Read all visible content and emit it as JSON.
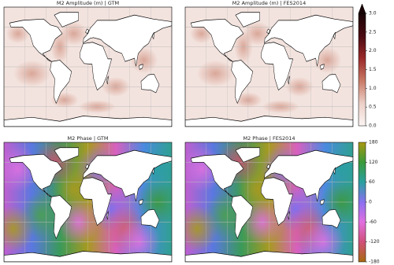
{
  "panels": [
    {
      "title": "M2 Amplitude (m) | GTM"
    },
    {
      "title": "M2 Amplitude (m) | FES2014"
    },
    {
      "title": "M2 Phase | GTM"
    },
    {
      "title": "M2 Phase | FES2014"
    }
  ],
  "colorbars": [
    {
      "lim": [
        0,
        3
      ],
      "extend": "max",
      "ticks": [
        {
          "value": 0,
          "label": "0.0"
        },
        0.5,
        {
          "value": 1,
          "label": "1.0"
        },
        1.5,
        {
          "value": 2,
          "label": "2.0"
        },
        2.5,
        {
          "value": 3,
          "label": "3.0"
        }
      ],
      "colors": [
        "#fbf5f3",
        "#ecd0c8",
        "#c97a66",
        "#9a2a2a",
        "#4a0a12",
        "#1a0306"
      ]
    },
    {
      "lim": [
        -180,
        180
      ],
      "ticks": [
        -180,
        -120,
        -60,
        0,
        60,
        120,
        180
      ],
      "colors": [
        "#a86a10",
        "#d0507a",
        "#e070e0",
        "#8a70f0",
        "#2aa0a0",
        "#3a9a3a",
        "#a89810"
      ]
    }
  ]
}
